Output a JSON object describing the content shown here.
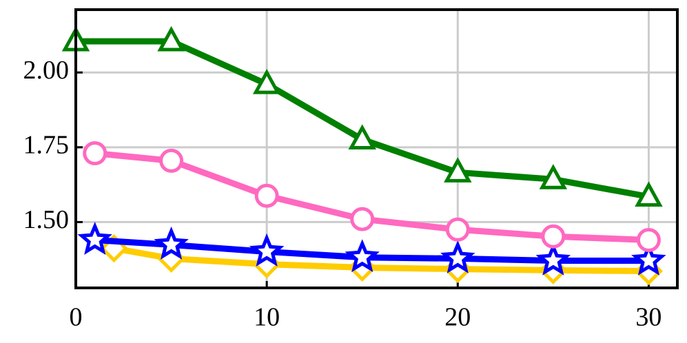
{
  "chart_data": {
    "type": "line",
    "xlim": [
      0,
      31.5
    ],
    "xticks": [
      0,
      10,
      20,
      30
    ],
    "ylim": [
      1.28,
      2.21
    ],
    "yticks": [
      {
        "value": 1.5,
        "label": "1.50"
      },
      {
        "value": 1.75,
        "label": "1.75"
      },
      {
        "value": 2,
        "label": "2.00"
      }
    ],
    "grid": true,
    "series": [
      {
        "color": "#ffcc00",
        "marker": "diamond",
        "x": [
          2,
          5,
          10,
          15,
          20,
          25,
          30
        ],
        "values": [
          1.412,
          1.378,
          1.359,
          1.348,
          1.343,
          1.339,
          1.336
        ]
      },
      {
        "color": "#0000ff",
        "marker": "star",
        "x": [
          1,
          5,
          10,
          15,
          20,
          25,
          30
        ],
        "values": [
          1.44,
          1.424,
          1.401,
          1.382,
          1.378,
          1.371,
          1.371
        ]
      },
      {
        "color": "#ff69c0",
        "marker": "circle",
        "x": [
          1,
          5,
          10,
          15,
          20,
          25,
          30
        ],
        "values": [
          1.73,
          1.705,
          1.588,
          1.51,
          1.475,
          1.452,
          1.44
        ]
      },
      {
        "color": "#008000",
        "marker": "triangle",
        "x": [
          0,
          5,
          10,
          15,
          20,
          25,
          30
        ],
        "values": [
          2.104,
          2.104,
          1.961,
          1.776,
          1.666,
          1.643,
          1.585
        ]
      }
    ]
  }
}
